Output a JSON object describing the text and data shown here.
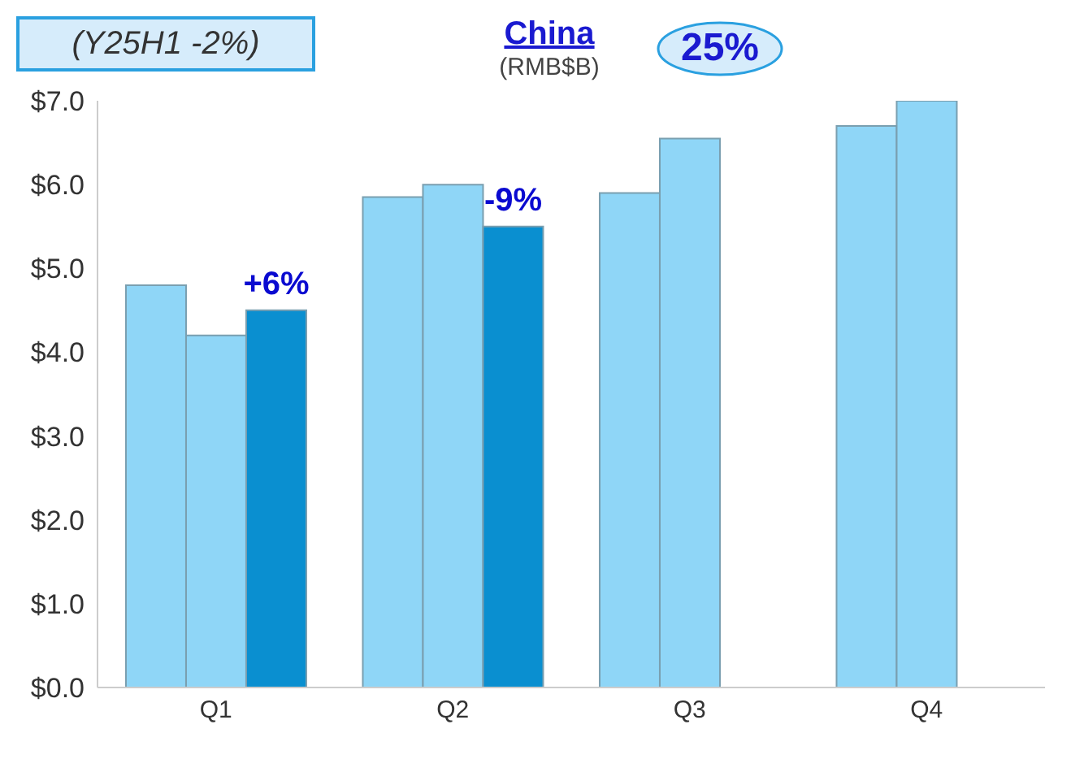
{
  "chart_data": {
    "type": "bar",
    "title": "China",
    "subtitle": "(RMB$B)",
    "annotations": [
      "(Y25H1 -2%)",
      "25%",
      "+6%",
      "-9%"
    ],
    "categories": [
      "Q1",
      "Q2",
      "Q3",
      "Q4"
    ],
    "series": [
      {
        "color": "#8fd6f7",
        "values": [
          4.8,
          5.85,
          5.9,
          6.7
        ]
      },
      {
        "color": "#8fd6f7",
        "values": [
          4.2,
          6.0,
          6.55,
          7.0
        ]
      },
      {
        "color": "#0a8fd0",
        "values": [
          4.5,
          5.5,
          null,
          null
        ]
      }
    ],
    "ylim": [
      0,
      7
    ],
    "yticks": [
      {
        "value": 0,
        "label": "$0.0"
      },
      {
        "value": 1,
        "label": "$1.0"
      },
      {
        "value": 2,
        "label": "$2.0"
      },
      {
        "value": 3,
        "label": "$3.0"
      },
      {
        "value": 4,
        "label": "$4.0"
      },
      {
        "value": 5,
        "label": "$5.0"
      },
      {
        "value": 6,
        "label": "$6.0"
      },
      {
        "value": 7,
        "label": "$7.0"
      }
    ],
    "grid": false,
    "legend": false
  }
}
